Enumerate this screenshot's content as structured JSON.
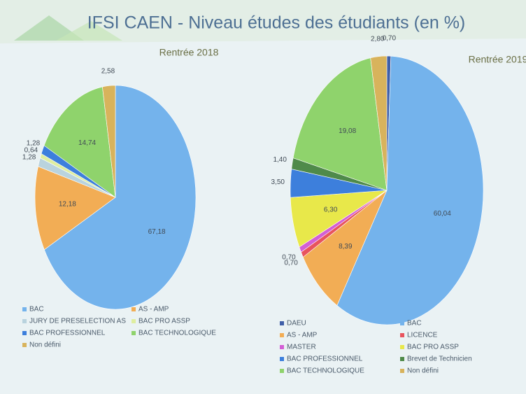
{
  "title": "IFSI CAEN - Niveau études des étudiants (en %)",
  "chart_data": [
    {
      "type": "pie",
      "title": "Rentrée 2018",
      "categories": [
        "BAC",
        "AS - AMP",
        "JURY DE PRESELECTION AS",
        "BAC PRO ASSP",
        "BAC PROFESSIONNEL",
        "BAC TECHNOLOGIQUE",
        "Non défini"
      ],
      "values": [
        67.18,
        12.18,
        1.28,
        0.64,
        1.28,
        14.74,
        2.58
      ],
      "value_labels": [
        "67,18",
        "12,18",
        "1,28",
        "0,64",
        "1,28",
        "14,74",
        "2,58"
      ],
      "colors": [
        "#74b3ec",
        "#f2ad55",
        "#b9d3de",
        "#dfeea0",
        "#3d7fdc",
        "#8fd36c",
        "#d8b35c"
      ]
    },
    {
      "type": "pie",
      "title": "Rentrée 2019",
      "categories": [
        "DAEU",
        "BAC",
        "AS - AMP",
        "LICENCE",
        "MASTER",
        "BAC PRO ASSP",
        "BAC PROFESSIONNEL",
        "Brevet de Technicien",
        "BAC TECHNOLOGIQUE",
        "Non défini"
      ],
      "values": [
        0.7,
        60.04,
        8.39,
        0.7,
        0.7,
        6.3,
        3.5,
        1.4,
        19.08,
        2.8
      ],
      "value_labels": [
        "0,70",
        "60,04",
        "8,39",
        "0,70",
        "0,70",
        "6,30",
        "3,50",
        "1,40",
        "19,08",
        "2,80"
      ],
      "colors": [
        "#3f5fa8",
        "#74b3ec",
        "#f2ad55",
        "#e8545e",
        "#d35fd6",
        "#e8e84a",
        "#3d7fdc",
        "#4f8a4a",
        "#8fd36c",
        "#d8b35c"
      ]
    }
  ]
}
